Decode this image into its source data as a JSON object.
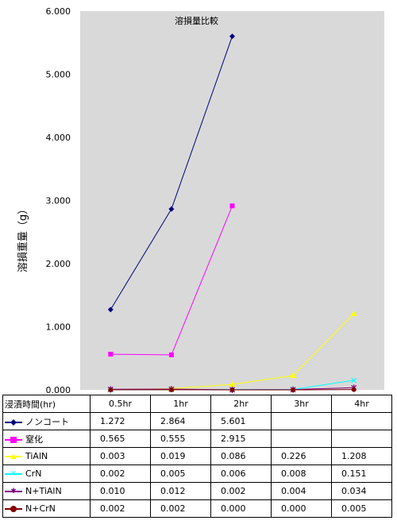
{
  "chart_data": {
    "type": "line",
    "title": "溶損量比較",
    "ylabel": "溶損重量（g）",
    "xlabel": "浸漬時間(hr)",
    "categories": [
      "0.5hr",
      "1hr",
      "2hr",
      "3hr",
      "4hr"
    ],
    "ylim": [
      0,
      6
    ],
    "yticks": [
      "0.000",
      "1.000",
      "2.000",
      "3.000",
      "4.000",
      "5.000",
      "6.000"
    ],
    "grid": false,
    "legend": "data-table",
    "series": [
      {
        "name": "ノンコート",
        "color": "#000080",
        "marker": "diamond",
        "values": [
          1.272,
          2.864,
          5.601,
          null,
          null
        ],
        "labels": [
          "1.272",
          "2.864",
          "5.601",
          "",
          ""
        ]
      },
      {
        "name": "窒化",
        "color": "#ff00ff",
        "marker": "square",
        "values": [
          0.565,
          0.555,
          2.915,
          null,
          null
        ],
        "labels": [
          "0.565",
          "0.555",
          "2.915",
          "",
          ""
        ]
      },
      {
        "name": "TiAlN",
        "color": "#ffff00",
        "marker": "triangle",
        "values": [
          0.003,
          0.019,
          0.086,
          0.226,
          1.208
        ],
        "labels": [
          "0.003",
          "0.019",
          "0.086",
          "0.226",
          "1.208"
        ]
      },
      {
        "name": "CrN",
        "color": "#00ffff",
        "marker": "x",
        "values": [
          0.002,
          0.005,
          0.006,
          0.008,
          0.151
        ],
        "labels": [
          "0.002",
          "0.005",
          "0.006",
          "0.008",
          "0.151"
        ]
      },
      {
        "name": "N+TiAlN",
        "color": "#800080",
        "marker": "star",
        "values": [
          0.01,
          0.012,
          0.002,
          0.004,
          0.034
        ],
        "labels": [
          "0.010",
          "0.012",
          "0.002",
          "0.004",
          "0.034"
        ]
      },
      {
        "name": "N+CrN",
        "color": "#800000",
        "marker": "circle",
        "values": [
          0.002,
          0.002,
          0.0,
          0.0,
          0.005
        ],
        "labels": [
          "0.002",
          "0.002",
          "0.000",
          "0.000",
          "0.005"
        ]
      }
    ]
  }
}
